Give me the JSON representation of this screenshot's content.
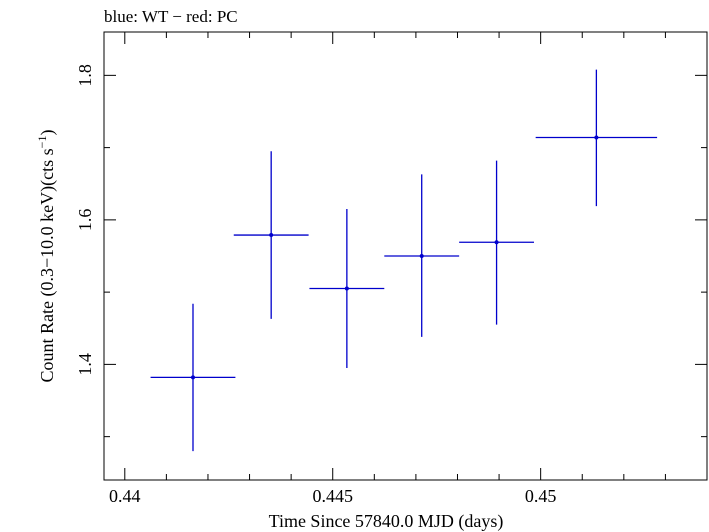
{
  "chart_data": {
    "type": "scatter",
    "title": "blue: WT − red: PC",
    "xlabel": "Time Since 57840.0 MJD (days)",
    "ylabel_main": "Count Rate (0.3−10.0 keV)(cts s",
    "ylabel_sup": "−1",
    "ylabel_close": ")",
    "xlim": [
      0.4395,
      0.454
    ],
    "ylim": [
      1.24,
      1.86
    ],
    "x_major_ticks": [
      0.44,
      0.445,
      0.45
    ],
    "x_tick_labels": [
      "0.44",
      "0.445",
      "0.45"
    ],
    "x_minor_step": 0.001,
    "y_major_ticks": [
      1.4,
      1.6,
      1.8
    ],
    "y_tick_labels": [
      "1.4",
      "1.6",
      "1.8"
    ],
    "y_minor_step": 0.1,
    "series": [
      {
        "name": "WT",
        "color": "#0000cc",
        "points": [
          {
            "x": 0.44164,
            "xerr": 0.00102,
            "y": 1.382,
            "yerr_low": 0.102,
            "yerr_high": 0.102
          },
          {
            "x": 0.44352,
            "xerr": 0.0009,
            "y": 1.579,
            "yerr_low": 0.116,
            "yerr_high": 0.116
          },
          {
            "x": 0.44534,
            "xerr": 0.0009,
            "y": 1.505,
            "yerr_low": 0.11,
            "yerr_high": 0.11
          },
          {
            "x": 0.44714,
            "xerr": 0.0009,
            "y": 1.55,
            "yerr_low": 0.112,
            "yerr_high": 0.113
          },
          {
            "x": 0.44894,
            "xerr": 0.0009,
            "y": 1.569,
            "yerr_low": 0.114,
            "yerr_high": 0.113
          },
          {
            "x": 0.45134,
            "xerr": 0.00146,
            "y": 1.714,
            "yerr_low": 0.095,
            "yerr_high": 0.094
          }
        ]
      }
    ]
  }
}
